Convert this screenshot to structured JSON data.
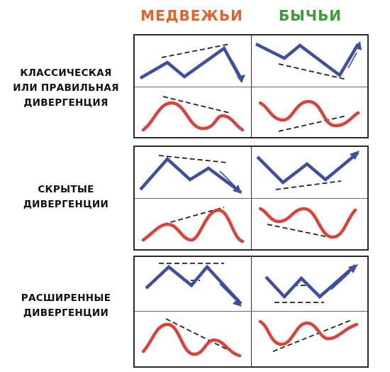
{
  "columns": {
    "bearish": {
      "label": "МЕДВЕЖЬИ",
      "color": "#e0622e"
    },
    "bullish": {
      "label": "БЫЧЬИ",
      "color": "#3e9b3a"
    }
  },
  "rows": [
    {
      "label_lines": [
        "КЛАССИЧЕСКАЯ",
        "ИЛИ ПРАВИЛЬНАЯ",
        "ДИВЕРГЕНЦИЯ"
      ]
    },
    {
      "label_lines": [
        "СКРЫТЫЕ",
        "ДИВЕРГЕНЦИИ"
      ]
    },
    {
      "label_lines": [
        "РАСШИРЕННЫЕ",
        "ДИВЕРГЕНЦИИ"
      ]
    }
  ],
  "colors": {
    "price_line": "#3d4f9e",
    "oscillator_line": "#d8443a",
    "trend_line": "#222222",
    "frame": "#2b2b2b"
  }
}
